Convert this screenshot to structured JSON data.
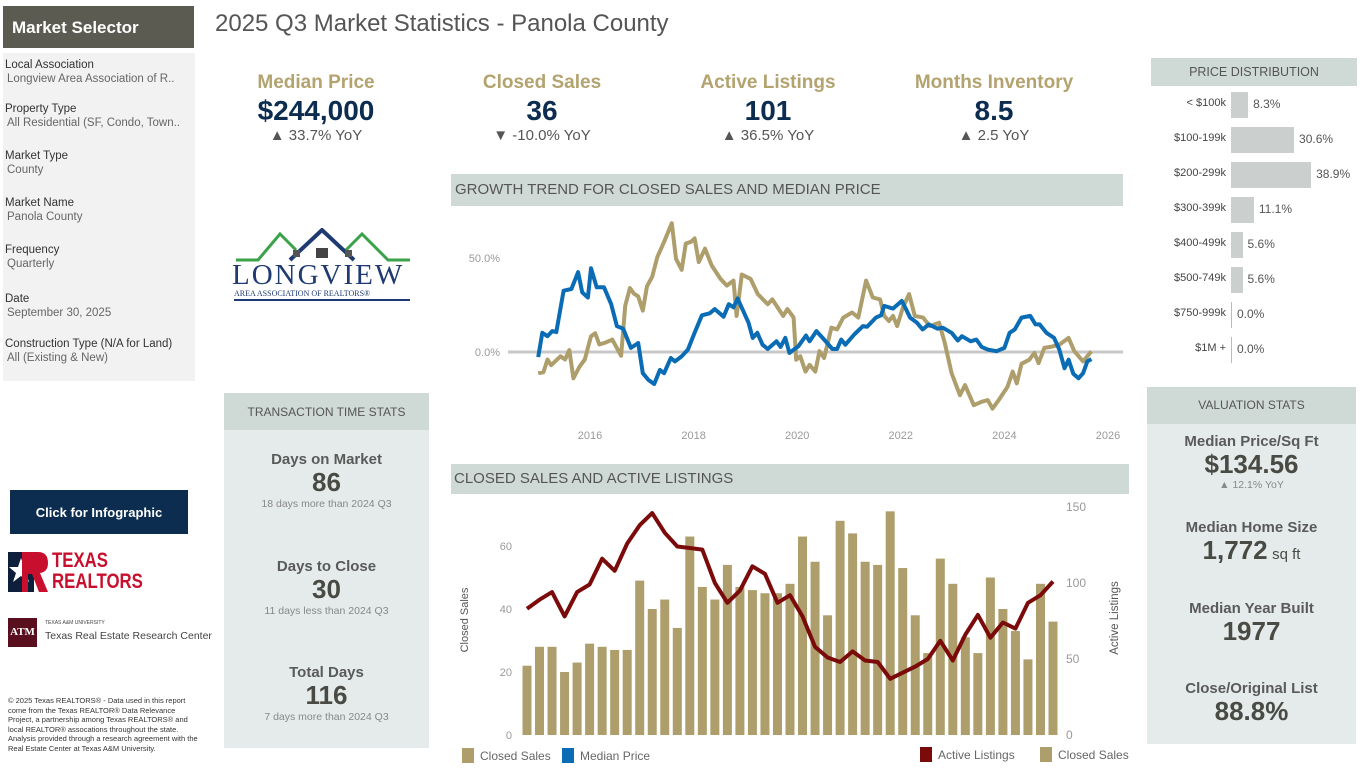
{
  "selector": {
    "title": "Market Selector",
    "fields": [
      {
        "label": "Local Association",
        "value": "Longview Area Association of R.."
      },
      {
        "label": "Property Type",
        "value": "All Residential (SF, Condo, Town.."
      },
      {
        "label": "Market Type",
        "value": "County"
      },
      {
        "label": "Market Name",
        "value": "Panola County"
      },
      {
        "label": "Frequency",
        "value": "Quarterly"
      },
      {
        "label": "Date",
        "value": "September 30, 2025"
      },
      {
        "label": "Construction Type (N/A for Land)",
        "value": "All (Existing & New)"
      }
    ]
  },
  "page_title": "2025 Q3 Market Statistics - Panola County",
  "logo": {
    "name": "LONGVIEW",
    "sub": "AREA ASSOCIATION OF REALTORS®"
  },
  "kpis": [
    {
      "label": "Median Price",
      "value": "$244,000",
      "change": "▲ 33.7% YoY"
    },
    {
      "label": "Closed Sales",
      "value": "36",
      "change": "▼ -10.0% YoY"
    },
    {
      "label": "Active Listings",
      "value": "101",
      "change": "▲ 36.5% YoY"
    },
    {
      "label": "Months Inventory",
      "value": "8.5",
      "change": "▲ 2.5 YoY"
    }
  ],
  "transaction": {
    "title": "TRANSACTION TIME STATS",
    "items": [
      {
        "label": "Days on Market",
        "value": "86",
        "note": "18 days more than 2024 Q3"
      },
      {
        "label": "Days to Close",
        "value": "30",
        "note": "11 days less than 2024 Q3"
      },
      {
        "label": "Total Days",
        "value": "116",
        "note": "7 days more than 2024 Q3"
      }
    ]
  },
  "infographic_button": "Click for Infographic",
  "texas_realtors": {
    "line1": "TEXAS",
    "line2": "REALTORS"
  },
  "tamu": {
    "small": "TEXAS A&M UNIVERSITY",
    "name": "Texas Real Estate Research Center",
    "mark": "ATM"
  },
  "footnote": "© 2025 Texas REALTORS® - Data used in this report come from the Texas REALTOR® Data Relevance Project, a partnership among Texas REALTORS® and local REALTOR® assocations throughout the state. Analysis provided through a research agreement with the Real Estate Center at Texas A&M University.",
  "price_distribution": {
    "title": "PRICE DISTRIBUTION",
    "rows": [
      {
        "label": "< $100k",
        "pct": 8.3,
        "text": "8.3%"
      },
      {
        "label": "$100-199k",
        "pct": 30.6,
        "text": "30.6%"
      },
      {
        "label": "$200-299k",
        "pct": 38.9,
        "text": "38.9%"
      },
      {
        "label": "$300-399k",
        "pct": 11.1,
        "text": "11.1%"
      },
      {
        "label": "$400-499k",
        "pct": 5.6,
        "text": "5.6%"
      },
      {
        "label": "$500-749k",
        "pct": 5.6,
        "text": "5.6%"
      },
      {
        "label": "$750-999k",
        "pct": 0.0,
        "text": "0.0%"
      },
      {
        "label": "$1M +",
        "pct": 0.0,
        "text": "0.0%"
      }
    ]
  },
  "valuation": {
    "title": "VALUATION STATS",
    "items": [
      {
        "label": "Median Price/Sq Ft",
        "value": "$134.56",
        "note": "▲ 12.1% YoY"
      },
      {
        "label": "Median Home Size",
        "value": "1,772",
        "unit": "sq ft"
      },
      {
        "label": "Median Year Built",
        "value": "1977"
      },
      {
        "label": "Close/Original List",
        "value": "88.8%"
      }
    ]
  },
  "colors": {
    "tan": "#ad9e6b",
    "blue": "#0a6cb5",
    "maroon": "#7b0a0a",
    "navy": "#0c2d4f"
  },
  "chart_data": [
    {
      "type": "line",
      "title": "GROWTH TREND FOR CLOSED SALES AND MEDIAN PRICE",
      "xticks": [
        "2016",
        "2018",
        "2020",
        "2022",
        "2024",
        "2026"
      ],
      "yticks": [
        "0.0%",
        "50.0%"
      ],
      "ytick_values": [
        0,
        50
      ],
      "xlim": [
        2015,
        2026
      ],
      "legend": [
        "Closed Sales",
        "Median Price"
      ],
      "series": [
        {
          "name": "Closed Sales",
          "color": "#ad9e6b",
          "points": [
            [
              2015.0,
              -11.3
            ],
            [
              2015.1,
              -10.8
            ],
            [
              2015.18,
              -4
            ],
            [
              2015.25,
              -7
            ],
            [
              2015.43,
              -2.3
            ],
            [
              2015.52,
              -4
            ],
            [
              2015.6,
              1
            ],
            [
              2015.68,
              -14
            ],
            [
              2015.8,
              -7.7
            ],
            [
              2015.9,
              -4
            ],
            [
              2016.02,
              8.4
            ],
            [
              2016.1,
              10
            ],
            [
              2016.18,
              4
            ],
            [
              2016.3,
              5
            ],
            [
              2016.43,
              6.6
            ],
            [
              2016.6,
              -2
            ],
            [
              2016.68,
              24.5
            ],
            [
              2016.77,
              34
            ],
            [
              2016.85,
              31
            ],
            [
              2016.93,
              29.6
            ],
            [
              2017.02,
              22
            ],
            [
              2017.1,
              35
            ],
            [
              2017.2,
              40
            ],
            [
              2017.3,
              50.5
            ],
            [
              2017.43,
              58.6
            ],
            [
              2017.58,
              68.5
            ],
            [
              2017.66,
              49.6
            ],
            [
              2017.77,
              43.7
            ],
            [
              2017.85,
              57.7
            ],
            [
              2017.95,
              58.6
            ],
            [
              2018.02,
              60.4
            ],
            [
              2018.1,
              47.8
            ],
            [
              2018.22,
              55
            ],
            [
              2018.35,
              46
            ],
            [
              2018.52,
              38.9
            ],
            [
              2018.64,
              35.3
            ],
            [
              2018.77,
              38
            ],
            [
              2018.83,
              19.2
            ],
            [
              2018.93,
              41.2
            ],
            [
              2019.1,
              38.9
            ],
            [
              2019.24,
              30.8
            ],
            [
              2019.43,
              25.4
            ],
            [
              2019.52,
              28
            ],
            [
              2019.73,
              19.2
            ],
            [
              2019.81,
              22.8
            ],
            [
              2019.93,
              18.3
            ],
            [
              2019.98,
              -4.1
            ],
            [
              2020.06,
              -2.3
            ],
            [
              2020.16,
              -10.4
            ],
            [
              2020.24,
              -6.8
            ],
            [
              2020.35,
              -10.4
            ],
            [
              2020.43,
              0.4
            ],
            [
              2020.52,
              -3.2
            ],
            [
              2020.66,
              12.9
            ],
            [
              2020.77,
              12
            ],
            [
              2020.89,
              18.3
            ],
            [
              2021.06,
              21
            ],
            [
              2021.18,
              18.3
            ],
            [
              2021.33,
              38
            ],
            [
              2021.46,
              29
            ],
            [
              2021.6,
              28
            ],
            [
              2021.68,
              19.2
            ],
            [
              2021.77,
              16.5
            ],
            [
              2021.85,
              19.2
            ],
            [
              2021.93,
              13.8
            ],
            [
              2022.04,
              23.7
            ],
            [
              2022.16,
              30.8
            ],
            [
              2022.27,
              19.2
            ],
            [
              2022.43,
              18.3
            ],
            [
              2022.56,
              13.8
            ],
            [
              2022.74,
              15.6
            ],
            [
              2022.85,
              4.8
            ],
            [
              2022.98,
              -11.3
            ],
            [
              2023.14,
              -23
            ],
            [
              2023.24,
              -17.6
            ],
            [
              2023.41,
              -28.3
            ],
            [
              2023.56,
              -26.5
            ],
            [
              2023.68,
              -25.6
            ],
            [
              2023.77,
              -30.1
            ],
            [
              2023.89,
              -25.6
            ],
            [
              2024.06,
              -18.5
            ],
            [
              2024.16,
              -10.4
            ],
            [
              2024.24,
              -16.7
            ],
            [
              2024.33,
              -6.3
            ],
            [
              2024.48,
              -4.1
            ],
            [
              2024.58,
              -0.5
            ],
            [
              2024.66,
              -5.9
            ],
            [
              2024.77,
              2.2
            ],
            [
              2024.89,
              2.7
            ],
            [
              2025.06,
              3.9
            ],
            [
              2025.24,
              7.5
            ],
            [
              2025.35,
              0.4
            ],
            [
              2025.52,
              -5
            ],
            [
              2025.68,
              0.4
            ]
          ]
        },
        {
          "name": "Median Price",
          "color": "#0a6cb5",
          "points": [
            [
              2015.0,
              -2.7
            ],
            [
              2015.08,
              10.2
            ],
            [
              2015.18,
              8.4
            ],
            [
              2015.27,
              11.1
            ],
            [
              2015.35,
              10.6
            ],
            [
              2015.49,
              32.6
            ],
            [
              2015.64,
              33.5
            ],
            [
              2015.77,
              42.5
            ],
            [
              2015.85,
              31.7
            ],
            [
              2015.96,
              29
            ],
            [
              2016.02,
              44.6
            ],
            [
              2016.13,
              34.4
            ],
            [
              2016.27,
              34.4
            ],
            [
              2016.41,
              25.4
            ],
            [
              2016.52,
              13.8
            ],
            [
              2016.64,
              12.4
            ],
            [
              2016.79,
              2.2
            ],
            [
              2016.93,
              4.8
            ],
            [
              2017.02,
              -11.3
            ],
            [
              2017.13,
              -14.9
            ],
            [
              2017.24,
              -17
            ],
            [
              2017.35,
              -9.5
            ],
            [
              2017.43,
              -11.3
            ],
            [
              2017.56,
              -3.2
            ],
            [
              2017.64,
              -5
            ],
            [
              2017.77,
              -2.3
            ],
            [
              2017.89,
              1.3
            ],
            [
              2018.02,
              10.2
            ],
            [
              2018.16,
              19.5
            ],
            [
              2018.31,
              20.6
            ],
            [
              2018.41,
              22.8
            ],
            [
              2018.58,
              18.8
            ],
            [
              2018.68,
              25.4
            ],
            [
              2018.77,
              23.7
            ],
            [
              2018.85,
              28.5
            ],
            [
              2019.06,
              15.6
            ],
            [
              2019.14,
              7.5
            ],
            [
              2019.23,
              10.2
            ],
            [
              2019.33,
              3.9
            ],
            [
              2019.43,
              1.6
            ],
            [
              2019.6,
              5.7
            ],
            [
              2019.68,
              2.7
            ],
            [
              2019.77,
              7.5
            ],
            [
              2019.85,
              -0.5
            ],
            [
              2020.02,
              3
            ],
            [
              2020.17,
              8.8
            ],
            [
              2020.24,
              5.7
            ],
            [
              2020.37,
              11.1
            ],
            [
              2020.49,
              7.5
            ],
            [
              2020.68,
              1.6
            ],
            [
              2020.77,
              1.6
            ],
            [
              2020.85,
              6.6
            ],
            [
              2020.93,
              3.9
            ],
            [
              2021.1,
              9.3
            ],
            [
              2021.27,
              13.8
            ],
            [
              2021.35,
              13.4
            ],
            [
              2021.52,
              18.3
            ],
            [
              2021.62,
              19.5
            ],
            [
              2021.68,
              24.5
            ],
            [
              2021.85,
              23.1
            ],
            [
              2022.02,
              27.2
            ],
            [
              2022.1,
              22.8
            ],
            [
              2022.18,
              18.3
            ],
            [
              2022.31,
              15.6
            ],
            [
              2022.42,
              12
            ],
            [
              2022.54,
              14.7
            ],
            [
              2022.71,
              12.4
            ],
            [
              2022.81,
              12.9
            ],
            [
              2022.98,
              10.2
            ],
            [
              2023.1,
              6.1
            ],
            [
              2023.18,
              8.4
            ],
            [
              2023.35,
              5.7
            ],
            [
              2023.46,
              6.6
            ],
            [
              2023.56,
              2.7
            ],
            [
              2023.68,
              1.3
            ],
            [
              2023.85,
              0.4
            ],
            [
              2024.0,
              2.2
            ],
            [
              2024.1,
              10.2
            ],
            [
              2024.2,
              12
            ],
            [
              2024.33,
              18.3
            ],
            [
              2024.5,
              19.2
            ],
            [
              2024.6,
              14.7
            ],
            [
              2024.68,
              14.7
            ],
            [
              2024.81,
              10.2
            ],
            [
              2024.96,
              7.5
            ],
            [
              2025.06,
              1.3
            ],
            [
              2025.16,
              -8.6
            ],
            [
              2025.24,
              -4.1
            ],
            [
              2025.33,
              -11.6
            ],
            [
              2025.43,
              -14
            ],
            [
              2025.52,
              -11.3
            ],
            [
              2025.6,
              -5
            ],
            [
              2025.68,
              -3.8
            ]
          ]
        }
      ]
    },
    {
      "type": "bar",
      "title": "CLOSED SALES AND ACTIVE LISTINGS",
      "ylabel": "Closed Sales",
      "y2label": "Active Listings",
      "yticks": [
        "0",
        "20",
        "40",
        "60"
      ],
      "ytick_values": [
        0,
        20,
        40,
        60
      ],
      "y2ticks": [
        "0",
        "50",
        "100",
        "150"
      ],
      "y2tick_values": [
        0,
        50,
        100,
        150
      ],
      "legend": [
        "Active Listings",
        "Closed Sales"
      ],
      "closed_sales": [
        22,
        28,
        28,
        20,
        23,
        29,
        28,
        27,
        27,
        49,
        40,
        43,
        34,
        63,
        47,
        43,
        54,
        47,
        46,
        45,
        45,
        48,
        63,
        55,
        38,
        68,
        64,
        55,
        54,
        71,
        53,
        38,
        26,
        56,
        48,
        31,
        26,
        50,
        40,
        33,
        24,
        48,
        36
      ],
      "active_listings": [
        83,
        89,
        94,
        78,
        94,
        99,
        116,
        108,
        126,
        138,
        146,
        133,
        124,
        123,
        122,
        100,
        87,
        95,
        111,
        106,
        87,
        92,
        78,
        58,
        51,
        48,
        55,
        49,
        48,
        37,
        41,
        45,
        50,
        62,
        49,
        66,
        79,
        64,
        74,
        70,
        87,
        92,
        101
      ]
    }
  ]
}
